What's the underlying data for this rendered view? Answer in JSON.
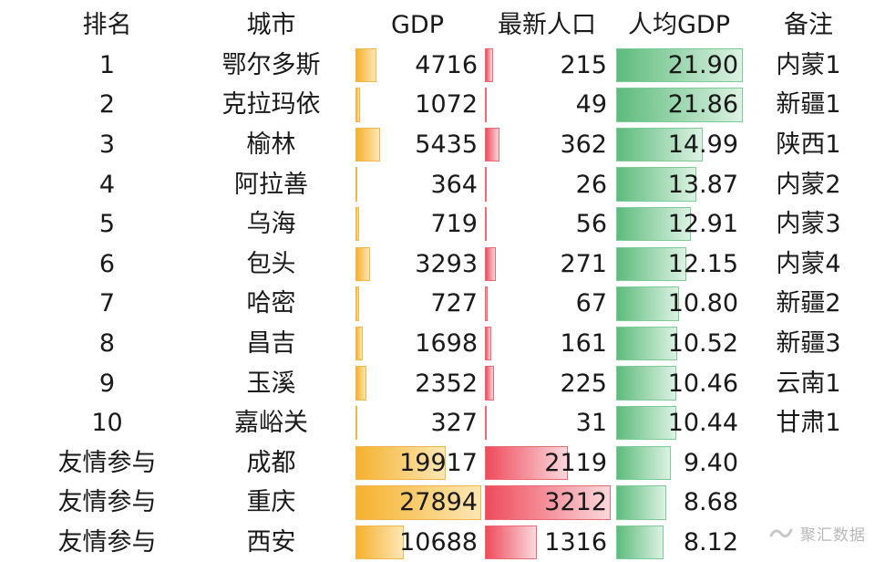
{
  "headers": {
    "rank": "排名",
    "city": "城市",
    "gdp": "GDP",
    "population": "最新人口",
    "gdp_per_capita": "人均GDP",
    "note": "备注"
  },
  "colors": {
    "gdp_bar": "#f5b12e",
    "population_bar": "#ee4b5b",
    "per_capita_bar": "#5dbb7c"
  },
  "chart_data": {
    "type": "table",
    "columns": [
      "排名",
      "城市",
      "GDP",
      "最新人口",
      "人均GDP",
      "备注"
    ],
    "rows": [
      {
        "rank": "1",
        "city": "鄂尔多斯",
        "gdp": "4716",
        "population": "215",
        "gdp_per_capita": "21.90",
        "note": "内蒙1"
      },
      {
        "rank": "2",
        "city": "克拉玛依",
        "gdp": "1072",
        "population": "49",
        "gdp_per_capita": "21.86",
        "note": "新疆1"
      },
      {
        "rank": "3",
        "city": "榆林",
        "gdp": "5435",
        "population": "362",
        "gdp_per_capita": "14.99",
        "note": "陕西1"
      },
      {
        "rank": "4",
        "city": "阿拉善",
        "gdp": "364",
        "population": "26",
        "gdp_per_capita": "13.87",
        "note": "内蒙2"
      },
      {
        "rank": "5",
        "city": "乌海",
        "gdp": "719",
        "population": "56",
        "gdp_per_capita": "12.91",
        "note": "内蒙3"
      },
      {
        "rank": "6",
        "city": "包头",
        "gdp": "3293",
        "population": "271",
        "gdp_per_capita": "12.15",
        "note": "内蒙4"
      },
      {
        "rank": "7",
        "city": "哈密",
        "gdp": "727",
        "population": "67",
        "gdp_per_capita": "10.80",
        "note": "新疆2"
      },
      {
        "rank": "8",
        "city": "昌吉",
        "gdp": "1698",
        "population": "161",
        "gdp_per_capita": "10.52",
        "note": "新疆3"
      },
      {
        "rank": "9",
        "city": "玉溪",
        "gdp": "2352",
        "population": "225",
        "gdp_per_capita": "10.46",
        "note": "云南1"
      },
      {
        "rank": "10",
        "city": "嘉峪关",
        "gdp": "327",
        "population": "31",
        "gdp_per_capita": "10.44",
        "note": "甘肃1"
      },
      {
        "rank": "友情参与",
        "city": "成都",
        "gdp": "19917",
        "population": "2119",
        "gdp_per_capita": "9.40",
        "note": ""
      },
      {
        "rank": "友情参与",
        "city": "重庆",
        "gdp": "27894",
        "population": "3212",
        "gdp_per_capita": "8.68",
        "note": ""
      },
      {
        "rank": "友情参与",
        "city": "西安",
        "gdp": "10688",
        "population": "1316",
        "gdp_per_capita": "8.12",
        "note": ""
      }
    ]
  },
  "watermark": {
    "text": "聚汇数据"
  }
}
